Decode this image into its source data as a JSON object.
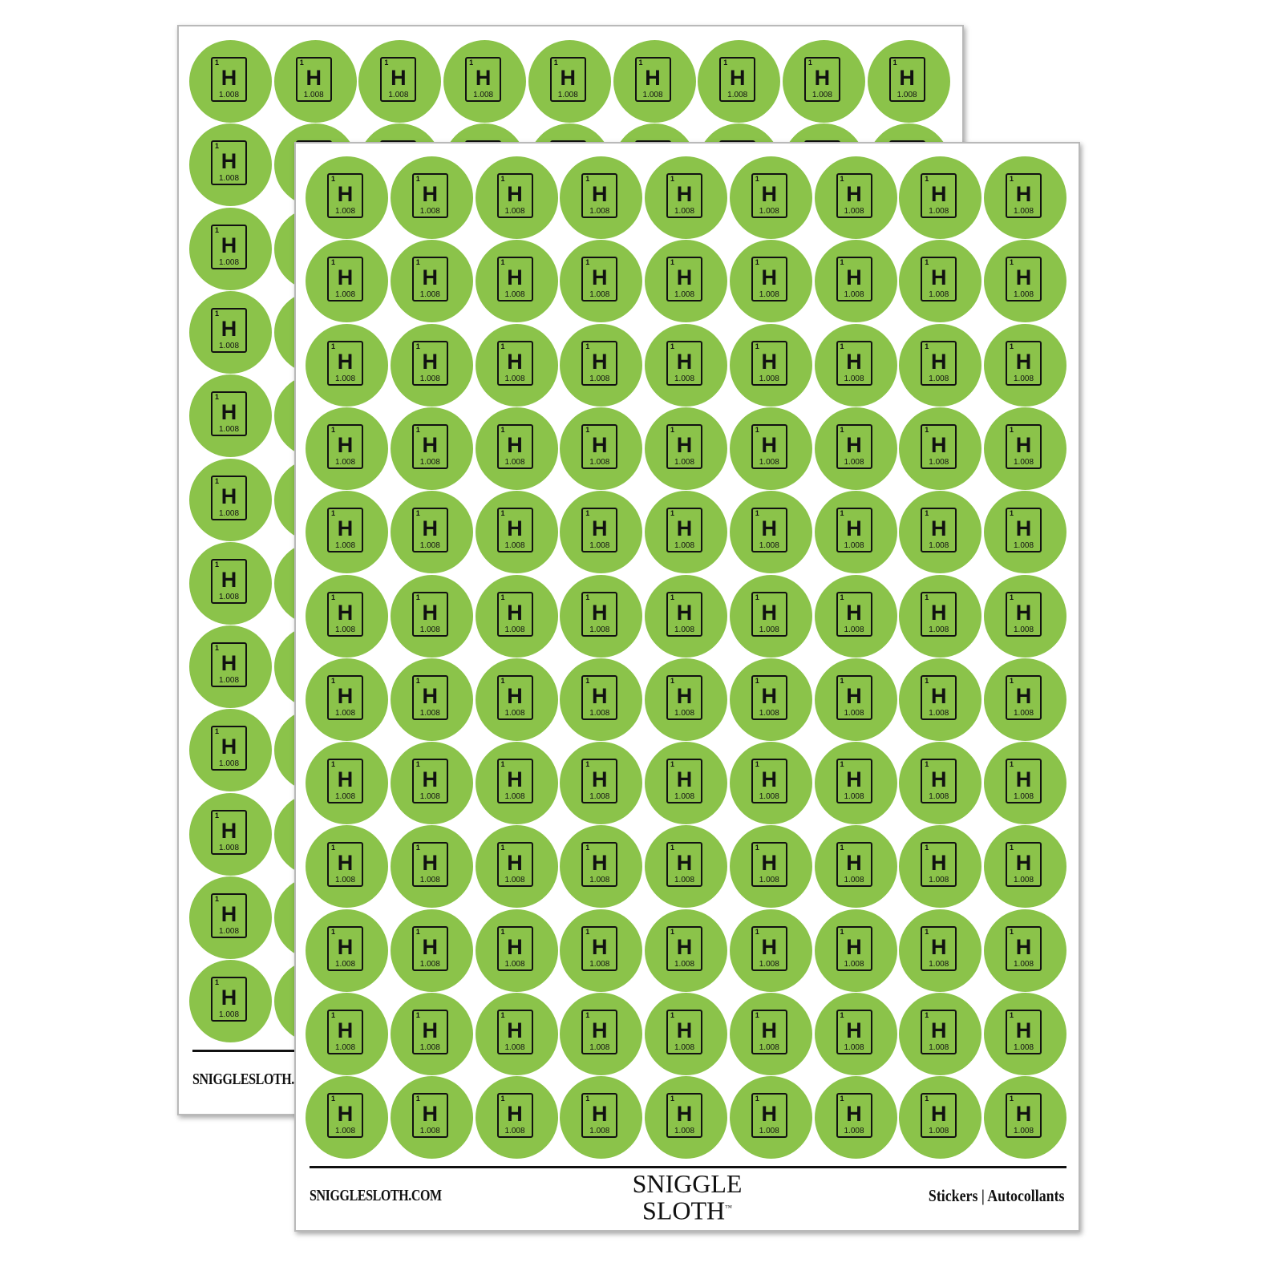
{
  "sticker": {
    "atomic_number": "1",
    "symbol": "H",
    "atomic_mass": "1.008",
    "color": "#8bc34a"
  },
  "grid": {
    "columns": 9,
    "rows": 12
  },
  "back_sheet": {
    "website": "SNIGGLESLOTH.C"
  },
  "front_sheet": {
    "website": "SNIGGLESLOTH.COM",
    "logo_line1": "SNIGGLE",
    "logo_line2": "SLOTH",
    "trademark": "™",
    "tagline": "Stickers  |  Autocollants"
  }
}
